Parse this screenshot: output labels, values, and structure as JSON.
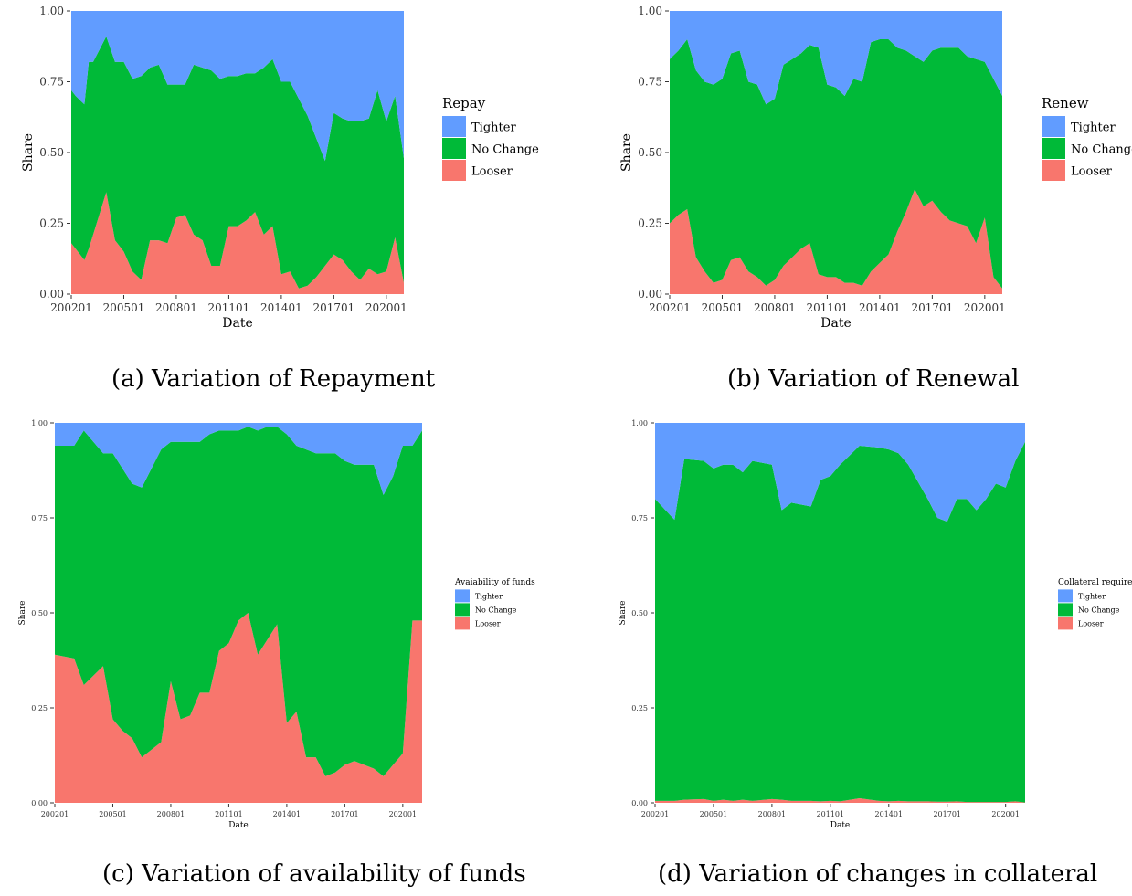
{
  "colors": {
    "tighter": "#619CFF",
    "no_change": "#00BA38",
    "looser": "#F8766D"
  },
  "chart_data": [
    {
      "type": "area",
      "stacked": true,
      "caption": "(a) Variation of Repayment",
      "xlabel": "Date",
      "ylabel": "Share",
      "ylim": [
        0,
        1
      ],
      "yticks": [
        "0.00",
        "0.25",
        "0.50",
        "0.75",
        "1.00"
      ],
      "xtick_labels": [
        "200201",
        "200501",
        "200801",
        "201101",
        "201401",
        "201701",
        "202001"
      ],
      "legend_title": "Repay",
      "legend_labels": [
        "Tighter",
        "No Change",
        "Looser"
      ],
      "legend_position": "right",
      "grid": false,
      "x": [
        2002.0,
        2002.25,
        2002.75,
        2003.0,
        2003.25,
        2004.0,
        2004.5,
        2005.0,
        2005.5,
        2006.0,
        2006.5,
        2007.0,
        2007.5,
        2008.0,
        2008.5,
        2009.0,
        2009.5,
        2010.0,
        2010.5,
        2011.0,
        2011.5,
        2012.0,
        2012.5,
        2013.0,
        2013.5,
        2014.0,
        2014.5,
        2015.0,
        2015.5,
        2016.0,
        2016.5,
        2017.0,
        2017.5,
        2018.0,
        2018.5,
        2019.0,
        2019.5,
        2020.0,
        2020.5,
        2021.0
      ],
      "series": [
        {
          "name": "Looser",
          "values": [
            0.18,
            0.16,
            0.12,
            0.16,
            0.21,
            0.36,
            0.19,
            0.15,
            0.08,
            0.05,
            0.19,
            0.19,
            0.18,
            0.27,
            0.28,
            0.21,
            0.19,
            0.1,
            0.1,
            0.24,
            0.24,
            0.26,
            0.29,
            0.21,
            0.24,
            0.07,
            0.08,
            0.02,
            0.03,
            0.06,
            0.1,
            0.14,
            0.12,
            0.08,
            0.05,
            0.09,
            0.07,
            0.08,
            0.2,
            0.04
          ]
        },
        {
          "name": "No Change",
          "values": [
            0.54,
            0.54,
            0.55,
            0.66,
            0.61,
            0.55,
            0.63,
            0.67,
            0.68,
            0.72,
            0.61,
            0.62,
            0.56,
            0.47,
            0.46,
            0.6,
            0.61,
            0.69,
            0.66,
            0.53,
            0.53,
            0.52,
            0.49,
            0.59,
            0.59,
            0.68,
            0.67,
            0.67,
            0.6,
            0.49,
            0.37,
            0.5,
            0.5,
            0.53,
            0.56,
            0.53,
            0.65,
            0.53,
            0.5,
            0.44
          ]
        },
        {
          "name": "Tighter",
          "values": [
            0.28,
            0.3,
            0.33,
            0.18,
            0.18,
            0.09,
            0.18,
            0.18,
            0.24,
            0.23,
            0.2,
            0.19,
            0.26,
            0.26,
            0.26,
            0.19,
            0.2,
            0.21,
            0.24,
            0.23,
            0.23,
            0.22,
            0.22,
            0.2,
            0.17,
            0.25,
            0.25,
            0.31,
            0.37,
            0.45,
            0.53,
            0.36,
            0.38,
            0.39,
            0.39,
            0.38,
            0.28,
            0.39,
            0.3,
            0.52
          ]
        }
      ]
    },
    {
      "type": "area",
      "stacked": true,
      "caption": "(b) Variation of Renewal",
      "xlabel": "Date",
      "ylabel": "Share",
      "ylim": [
        0,
        1
      ],
      "yticks": [
        "0.00",
        "0.25",
        "0.50",
        "0.75",
        "1.00"
      ],
      "xtick_labels": [
        "200201",
        "200501",
        "200801",
        "201101",
        "201401",
        "201701",
        "202001"
      ],
      "legend_title": "Renew",
      "legend_labels": [
        "Tighter",
        "No Change",
        "Looser"
      ],
      "legend_position": "right",
      "grid": false,
      "x": [
        2002.0,
        2002.5,
        2003.0,
        2003.5,
        2004.0,
        2004.5,
        2005.0,
        2005.5,
        2006.0,
        2006.5,
        2007.0,
        2007.5,
        2008.0,
        2008.5,
        2009.0,
        2009.5,
        2010.0,
        2010.5,
        2011.0,
        2011.5,
        2012.0,
        2012.5,
        2013.0,
        2013.5,
        2014.0,
        2014.5,
        2015.0,
        2015.5,
        2016.0,
        2016.5,
        2017.0,
        2017.5,
        2018.0,
        2018.5,
        2019.0,
        2019.5,
        2020.0,
        2020.5,
        2021.0
      ],
      "series": [
        {
          "name": "Looser",
          "values": [
            0.25,
            0.28,
            0.3,
            0.13,
            0.08,
            0.04,
            0.05,
            0.12,
            0.13,
            0.08,
            0.06,
            0.03,
            0.05,
            0.1,
            0.13,
            0.16,
            0.18,
            0.07,
            0.06,
            0.06,
            0.04,
            0.04,
            0.03,
            0.08,
            0.11,
            0.14,
            0.22,
            0.29,
            0.37,
            0.31,
            0.33,
            0.29,
            0.26,
            0.25,
            0.24,
            0.18,
            0.27,
            0.06,
            0.02
          ]
        },
        {
          "name": "No Change",
          "values": [
            0.58,
            0.58,
            0.6,
            0.66,
            0.67,
            0.7,
            0.71,
            0.73,
            0.73,
            0.67,
            0.68,
            0.64,
            0.64,
            0.71,
            0.7,
            0.69,
            0.7,
            0.8,
            0.68,
            0.67,
            0.66,
            0.72,
            0.72,
            0.81,
            0.79,
            0.76,
            0.65,
            0.57,
            0.47,
            0.51,
            0.53,
            0.58,
            0.61,
            0.62,
            0.6,
            0.65,
            0.55,
            0.7,
            0.68
          ]
        },
        {
          "name": "Tighter",
          "values": [
            0.17,
            0.14,
            0.1,
            0.21,
            0.25,
            0.26,
            0.24,
            0.15,
            0.14,
            0.25,
            0.26,
            0.33,
            0.31,
            0.19,
            0.17,
            0.15,
            0.12,
            0.13,
            0.26,
            0.27,
            0.3,
            0.24,
            0.25,
            0.11,
            0.1,
            0.1,
            0.13,
            0.14,
            0.16,
            0.18,
            0.14,
            0.13,
            0.13,
            0.13,
            0.16,
            0.17,
            0.18,
            0.24,
            0.3
          ]
        }
      ]
    },
    {
      "type": "area",
      "stacked": true,
      "caption": "(c) Variation of availability of funds",
      "xlabel": "Date",
      "ylabel": "Share",
      "ylim": [
        0,
        1
      ],
      "yticks": [
        "0.00",
        "0.25",
        "0.50",
        "0.75",
        "1.00"
      ],
      "xtick_labels": [
        "200201",
        "200501",
        "200801",
        "201101",
        "201401",
        "201701",
        "202001"
      ],
      "legend_title": "Avaiability of funds",
      "legend_labels": [
        "Tighter",
        "No Change",
        "Looser"
      ],
      "legend_position": "right",
      "grid": false,
      "x": [
        2002.0,
        2003.0,
        2003.5,
        2004.5,
        2005.0,
        2005.5,
        2006.0,
        2006.5,
        2007.5,
        2008.0,
        2008.5,
        2009.0,
        2009.5,
        2010.0,
        2010.5,
        2011.0,
        2011.5,
        2012.0,
        2012.5,
        2013.0,
        2013.5,
        2014.0,
        2014.5,
        2015.0,
        2015.5,
        2016.0,
        2016.5,
        2017.0,
        2017.5,
        2018.0,
        2018.5,
        2019.0,
        2019.5,
        2020.0,
        2020.5,
        2021.0
      ],
      "series": [
        {
          "name": "Looser",
          "values": [
            0.39,
            0.38,
            0.31,
            0.36,
            0.22,
            0.19,
            0.17,
            0.12,
            0.16,
            0.32,
            0.22,
            0.23,
            0.29,
            0.29,
            0.4,
            0.42,
            0.48,
            0.5,
            0.39,
            0.43,
            0.47,
            0.21,
            0.24,
            0.12,
            0.12,
            0.07,
            0.08,
            0.1,
            0.11,
            0.1,
            0.09,
            0.07,
            0.1,
            0.13,
            0.48,
            0.48
          ]
        },
        {
          "name": "No Change",
          "values": [
            0.55,
            0.56,
            0.67,
            0.56,
            0.7,
            0.69,
            0.67,
            0.71,
            0.77,
            0.63,
            0.73,
            0.72,
            0.66,
            0.68,
            0.58,
            0.56,
            0.5,
            0.49,
            0.59,
            0.56,
            0.52,
            0.76,
            0.7,
            0.81,
            0.8,
            0.85,
            0.84,
            0.8,
            0.78,
            0.79,
            0.8,
            0.74,
            0.76,
            0.81,
            0.46,
            0.5
          ]
        },
        {
          "name": "Tighter",
          "values": [
            0.06,
            0.06,
            0.02,
            0.08,
            0.08,
            0.12,
            0.16,
            0.17,
            0.07,
            0.05,
            0.05,
            0.05,
            0.05,
            0.03,
            0.02,
            0.02,
            0.02,
            0.01,
            0.02,
            0.01,
            0.01,
            0.03,
            0.06,
            0.07,
            0.08,
            0.08,
            0.08,
            0.1,
            0.11,
            0.11,
            0.11,
            0.19,
            0.14,
            0.06,
            0.06,
            0.02
          ]
        }
      ]
    },
    {
      "type": "area",
      "stacked": true,
      "caption": "(d) Variation of changes in collateral",
      "xlabel": "Date",
      "ylabel": "Share",
      "ylim": [
        0,
        1
      ],
      "yticks": [
        "0.00",
        "0.25",
        "0.50",
        "0.75",
        "1.00"
      ],
      "xtick_labels": [
        "200201",
        "200501",
        "200801",
        "201101",
        "201401",
        "201701",
        "202001"
      ],
      "legend_title": "Collateral required",
      "legend_labels": [
        "Tighter",
        "No Change",
        "Looser"
      ],
      "legend_position": "right",
      "grid": false,
      "x": [
        2002.0,
        2003.0,
        2003.5,
        2004.5,
        2005.0,
        2005.5,
        2006.0,
        2006.5,
        2007.0,
        2008.0,
        2008.5,
        2009.0,
        2010.0,
        2010.5,
        2011.0,
        2011.5,
        2012.5,
        2013.5,
        2014.0,
        2014.5,
        2015.0,
        2016.0,
        2016.5,
        2017.0,
        2017.5,
        2018.0,
        2018.5,
        2019.0,
        2019.5,
        2020.0,
        2020.5,
        2021.0
      ],
      "series": [
        {
          "name": "Looser",
          "values": [
            0.005,
            0.005,
            0.008,
            0.01,
            0.005,
            0.008,
            0.005,
            0.008,
            0.005,
            0.01,
            0.008,
            0.005,
            0.005,
            0.004,
            0.005,
            0.004,
            0.012,
            0.005,
            0.004,
            0.005,
            0.004,
            0.004,
            0.003,
            0.003,
            0.004,
            0.002,
            0.002,
            0.002,
            0.002,
            0.002,
            0.004,
            0.001
          ]
        },
        {
          "name": "No Change",
          "values": [
            0.795,
            0.74,
            0.897,
            0.89,
            0.875,
            0.882,
            0.885,
            0.862,
            0.895,
            0.88,
            0.762,
            0.785,
            0.775,
            0.846,
            0.855,
            0.886,
            0.928,
            0.93,
            0.926,
            0.915,
            0.886,
            0.796,
            0.747,
            0.737,
            0.796,
            0.798,
            0.768,
            0.798,
            0.838,
            0.828,
            0.896,
            0.949
          ]
        },
        {
          "name": "Tighter",
          "values": [
            0.2,
            0.255,
            0.095,
            0.1,
            0.12,
            0.11,
            0.11,
            0.13,
            0.1,
            0.11,
            0.23,
            0.21,
            0.22,
            0.15,
            0.14,
            0.11,
            0.06,
            0.065,
            0.07,
            0.08,
            0.11,
            0.2,
            0.25,
            0.26,
            0.2,
            0.2,
            0.23,
            0.2,
            0.16,
            0.17,
            0.1,
            0.05
          ]
        }
      ]
    }
  ]
}
